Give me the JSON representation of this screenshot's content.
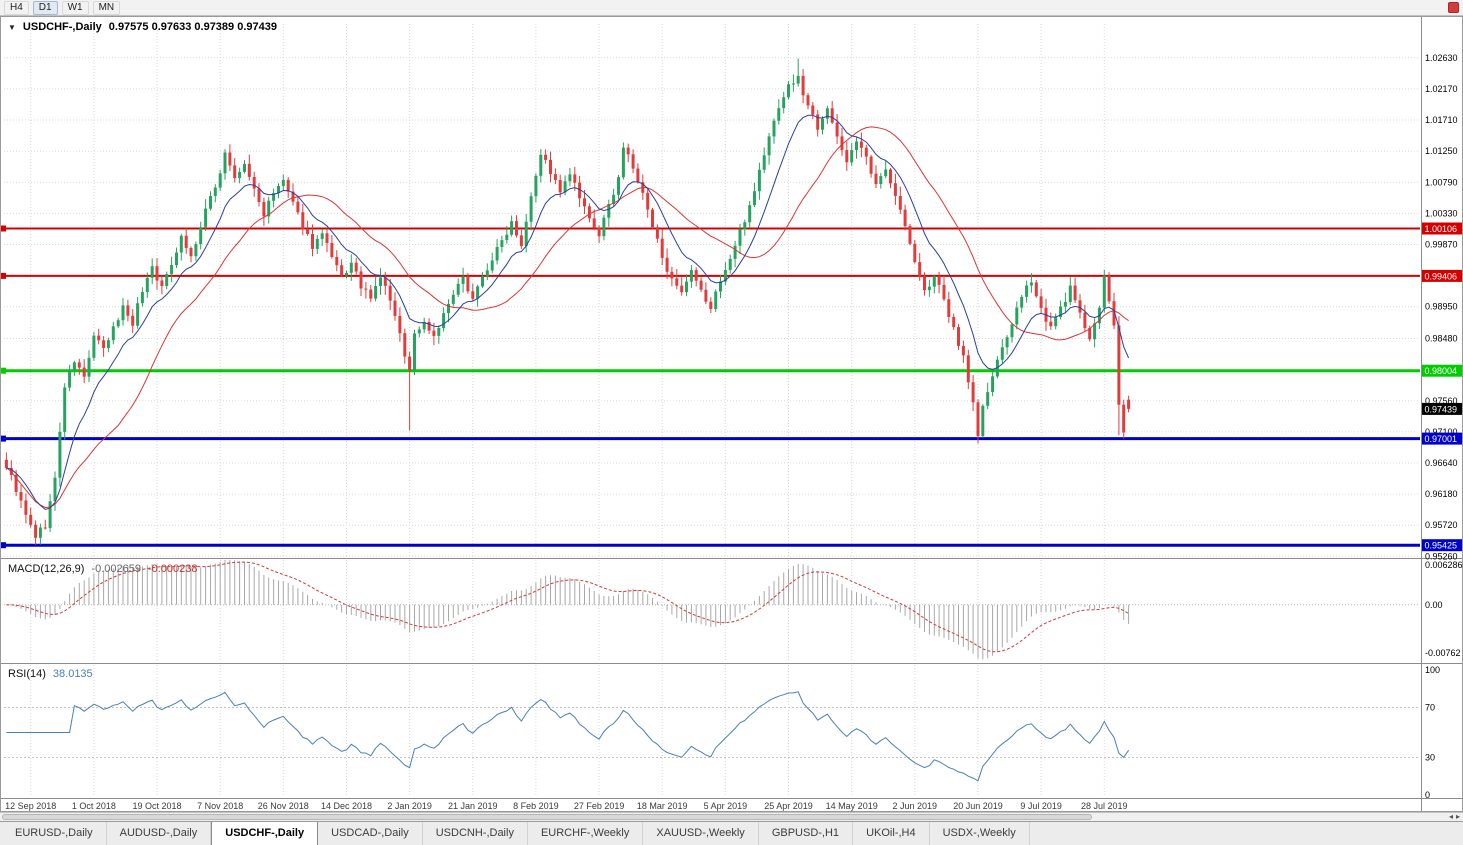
{
  "toolbar": {
    "timeframes": [
      "H4",
      "D1",
      "W1",
      "MN"
    ],
    "active_timeframe": "D1"
  },
  "chart": {
    "header_title": "USDCHF-,Daily",
    "header_ohlc": "0.97575 0.97633 0.97389 0.97439",
    "open": "0.97575",
    "high": "0.97633",
    "low": "0.97389",
    "close": "0.97439",
    "collapse_icon": "▼"
  },
  "macd": {
    "name": "MACD(12,26,9)",
    "value_main": "-0.002659",
    "value_signal": "-0.000238"
  },
  "rsi": {
    "name": "RSI(14)",
    "value": "38.0135"
  },
  "tabs": {
    "items": [
      "EURUSD-,Daily",
      "AUDUSD-,Daily",
      "USDCHF-,Daily",
      "USDCAD-,Daily",
      "USDCNH-,Daily",
      "EURCHF-,Weekly",
      "XAUUSD-,Weekly",
      "GBPUSD-,H1",
      "UKOil-,H4",
      "USDX-,Weekly"
    ],
    "active_index": 2
  },
  "chart_data": {
    "type": "candlestick",
    "symbol": "USDCHF",
    "timeframe": "Daily",
    "bars": 232,
    "price_range": [
      0.9525,
      1.0313
    ],
    "seed": 9,
    "noise_amp": 0.0011,
    "axis_labels": [
      {
        "t": "1.02630",
        "v": 1.0263
      },
      {
        "t": "1.02170",
        "v": 1.0217
      },
      {
        "t": "1.01710",
        "v": 1.0171
      },
      {
        "t": "1.01250",
        "v": 1.0125
      },
      {
        "t": "1.00790",
        "v": 1.0079
      },
      {
        "t": "1.00330",
        "v": 1.0033
      },
      {
        "t": "0.99870",
        "v": 0.9987
      },
      {
        "t": "0.98950",
        "v": 0.9895
      },
      {
        "t": "0.98480",
        "v": 0.9848
      },
      {
        "t": "0.97560",
        "v": 0.9756
      },
      {
        "t": "0.97100",
        "v": 0.971
      },
      {
        "t": "0.96640",
        "v": 0.9664
      },
      {
        "t": "0.96180",
        "v": 0.9618
      },
      {
        "t": "0.95720",
        "v": 0.9572
      },
      {
        "t": "0.95260",
        "v": 0.9526
      }
    ],
    "levels": [
      {
        "label": "1.00106",
        "value": 1.00106,
        "color": "#d40000",
        "width": 2
      },
      {
        "label": "0.99406",
        "value": 0.99406,
        "color": "#d40000",
        "width": 2
      },
      {
        "label": "0.98004",
        "value": 0.98004,
        "color": "#00cc00",
        "width": 3
      },
      {
        "label": "0.97001",
        "value": 0.97001,
        "color": "#0000cc",
        "width": 3
      },
      {
        "label": "0.95425",
        "value": 0.95425,
        "color": "#0000cc",
        "width": 3
      }
    ],
    "current_price": {
      "label": "0.97439",
      "value": 0.97439,
      "bg": "#000000"
    },
    "date_ticks": [
      {
        "bar": 5,
        "label": "12 Sep 2018"
      },
      {
        "bar": 18,
        "label": "1 Oct 2018"
      },
      {
        "bar": 31,
        "label": "19 Oct 2018"
      },
      {
        "bar": 44,
        "label": "7 Nov 2018"
      },
      {
        "bar": 57,
        "label": "26 Nov 2018"
      },
      {
        "bar": 70,
        "label": "14 Dec 2018"
      },
      {
        "bar": 83,
        "label": "2 Jan 2019"
      },
      {
        "bar": 96,
        "label": "21 Jan 2019"
      },
      {
        "bar": 109,
        "label": "8 Feb 2019"
      },
      {
        "bar": 122,
        "label": "27 Feb 2019"
      },
      {
        "bar": 135,
        "label": "18 Mar 2019"
      },
      {
        "bar": 148,
        "label": "5 Apr 2019"
      },
      {
        "bar": 161,
        "label": "25 Apr 2019"
      },
      {
        "bar": 174,
        "label": "14 May 2019"
      },
      {
        "bar": 187,
        "label": "2 Jun 2019"
      },
      {
        "bar": 200,
        "label": "20 Jun 2019"
      },
      {
        "bar": 213,
        "label": "9 Jul 2019"
      },
      {
        "bar": 226,
        "label": "28 Jul 2019"
      }
    ],
    "close_waypoints": [
      [
        0,
        0.966
      ],
      [
        2,
        0.9625
      ],
      [
        4,
        0.9585
      ],
      [
        6,
        0.9556
      ],
      [
        8,
        0.9572
      ],
      [
        10,
        0.964
      ],
      [
        12,
        0.9778
      ],
      [
        14,
        0.9815
      ],
      [
        16,
        0.979
      ],
      [
        18,
        0.9852
      ],
      [
        20,
        0.983
      ],
      [
        22,
        0.9862
      ],
      [
        24,
        0.9895
      ],
      [
        26,
        0.9872
      ],
      [
        28,
        0.992
      ],
      [
        30,
        0.9955
      ],
      [
        32,
        0.9922
      ],
      [
        34,
        0.996
      ],
      [
        36,
        1.0
      ],
      [
        38,
        0.9968
      ],
      [
        40,
        1.0012
      ],
      [
        42,
        1.0058
      ],
      [
        44,
        1.0092
      ],
      [
        45,
        1.0125
      ],
      [
        47,
        1.0082
      ],
      [
        49,
        1.0105
      ],
      [
        51,
        1.0068
      ],
      [
        53,
        1.0032
      ],
      [
        55,
        1.0062
      ],
      [
        57,
        1.0082
      ],
      [
        59,
        1.0045
      ],
      [
        61,
        1.0015
      ],
      [
        63,
        0.9985
      ],
      [
        65,
        1.0002
      ],
      [
        67,
        0.9966
      ],
      [
        69,
        0.9938
      ],
      [
        71,
        0.9958
      ],
      [
        73,
        0.9926
      ],
      [
        75,
        0.9905
      ],
      [
        77,
        0.994
      ],
      [
        79,
        0.9906
      ],
      [
        81,
        0.9852
      ],
      [
        83,
        0.98
      ],
      [
        84,
        0.9855
      ],
      [
        86,
        0.9872
      ],
      [
        88,
        0.9852
      ],
      [
        90,
        0.9882
      ],
      [
        92,
        0.9912
      ],
      [
        94,
        0.9936
      ],
      [
        96,
        0.991
      ],
      [
        98,
        0.9938
      ],
      [
        100,
        0.9966
      ],
      [
        102,
        0.9992
      ],
      [
        104,
        1.0022
      ],
      [
        106,
        0.9988
      ],
      [
        108,
        1.0062
      ],
      [
        110,
        1.0122
      ],
      [
        112,
        1.0095
      ],
      [
        114,
        1.0062
      ],
      [
        116,
        1.0092
      ],
      [
        118,
        1.0055
      ],
      [
        120,
        1.0022
      ],
      [
        122,
        1.0002
      ],
      [
        124,
        1.0042
      ],
      [
        126,
        1.0088
      ],
      [
        127,
        1.0132
      ],
      [
        129,
        1.01
      ],
      [
        131,
        1.006
      ],
      [
        133,
        1.0012
      ],
      [
        135,
        0.9972
      ],
      [
        137,
        0.9932
      ],
      [
        139,
        0.9912
      ],
      [
        141,
        0.9945
      ],
      [
        143,
        0.9916
      ],
      [
        145,
        0.9892
      ],
      [
        147,
        0.9936
      ],
      [
        149,
        0.9965
      ],
      [
        151,
        1.0005
      ],
      [
        153,
        1.0045
      ],
      [
        155,
        1.0095
      ],
      [
        157,
        1.0145
      ],
      [
        159,
        1.0192
      ],
      [
        161,
        1.0222
      ],
      [
        163,
        1.0232
      ],
      [
        165,
        1.0192
      ],
      [
        167,
        1.0162
      ],
      [
        169,
        1.0192
      ],
      [
        171,
        1.0142
      ],
      [
        173,
        1.0112
      ],
      [
        175,
        1.0142
      ],
      [
        177,
        1.0112
      ],
      [
        179,
        1.0072
      ],
      [
        181,
        1.0102
      ],
      [
        183,
        1.0062
      ],
      [
        185,
        1.0012
      ],
      [
        187,
        0.9962
      ],
      [
        189,
        0.9916
      ],
      [
        191,
        0.9942
      ],
      [
        193,
        0.9902
      ],
      [
        195,
        0.9862
      ],
      [
        197,
        0.9822
      ],
      [
        199,
        0.9752
      ],
      [
        200,
        0.9706
      ],
      [
        201,
        0.9746
      ],
      [
        203,
        0.9792
      ],
      [
        205,
        0.9832
      ],
      [
        207,
        0.9872
      ],
      [
        209,
        0.9906
      ],
      [
        211,
        0.9936
      ],
      [
        213,
        0.9892
      ],
      [
        215,
        0.9862
      ],
      [
        217,
        0.9892
      ],
      [
        219,
        0.9922
      ],
      [
        221,
        0.9882
      ],
      [
        223,
        0.9852
      ],
      [
        225,
        0.9892
      ],
      [
        226,
        0.9938
      ],
      [
        227,
        0.9906
      ],
      [
        228,
        0.9862
      ],
      [
        229,
        0.9752
      ],
      [
        230,
        0.9708
      ],
      [
        231,
        0.97439
      ]
    ],
    "wick_overrides": [
      {
        "b": 6,
        "l": 0.9543
      },
      {
        "b": 45,
        "h": 1.0128
      },
      {
        "b": 83,
        "l": 0.9712
      },
      {
        "b": 110,
        "h": 1.0128
      },
      {
        "b": 127,
        "h": 1.0138
      },
      {
        "b": 163,
        "h": 1.0262
      },
      {
        "b": 200,
        "l": 0.9693
      },
      {
        "b": 229,
        "l": 0.9705
      },
      {
        "b": 230,
        "l": 0.97
      },
      {
        "b": 231,
        "o": 0.97575,
        "h": 0.97633,
        "l": 0.97389,
        "c": 0.97439
      }
    ],
    "ma": {
      "fast_period": 10,
      "slow_period": 24
    },
    "macd_panel": {
      "params": [
        12,
        26,
        9
      ],
      "range": [
        -0.00904,
        0.00708
      ],
      "labels": [
        {
          "t": "0.006286",
          "v": 0.006286
        },
        {
          "t": "0.00",
          "v": 0
        },
        {
          "t": "-0.00762",
          "v": -0.00762
        }
      ],
      "last_main": -0.002659,
      "last_signal": -0.000238
    },
    "rsi_panel": {
      "period": 14,
      "range": [
        0,
        100
      ],
      "guides": [
        70,
        30
      ],
      "labels": [
        {
          "t": "100",
          "v": 100
        },
        {
          "t": "70",
          "v": 70
        },
        {
          "t": "30",
          "v": 30
        },
        {
          "t": "0",
          "v": 0
        }
      ],
      "last_value": 38.0135
    },
    "colors": {
      "up": "#26a35f",
      "down": "#e23b3b",
      "ma_fast": "#2a3f9e",
      "ma_slow": "#d93636",
      "grid": "#d9d9d9",
      "macd_hist": "#a8a8a8",
      "macd_signal": "#cc3b3b",
      "rsi_line": "#4a7ebb",
      "axis_text": "#000000",
      "date_text": "#3a3a3a"
    }
  }
}
